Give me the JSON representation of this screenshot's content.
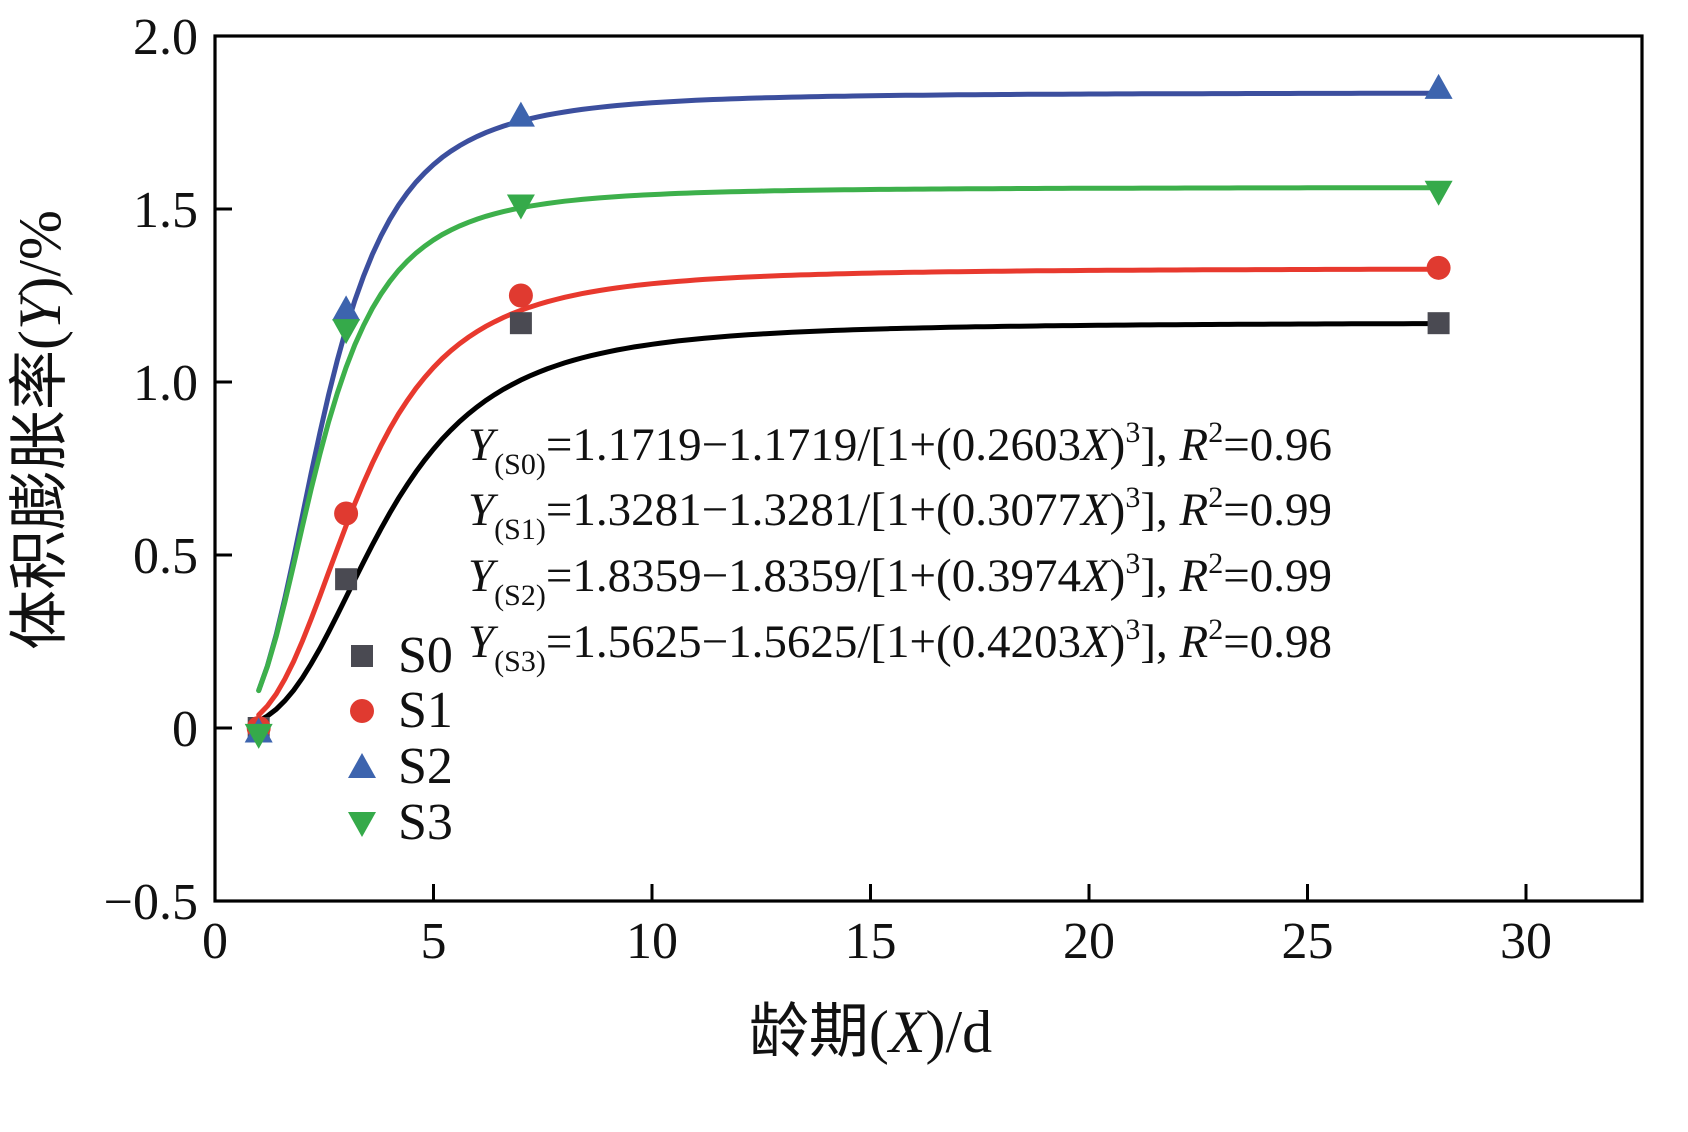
{
  "chart_data": {
    "type": "scatter",
    "title": "",
    "xlabel_tokens": [
      {
        "t": "龄期("
      },
      {
        "t": "X",
        "i": true
      },
      {
        "t": ")/d"
      }
    ],
    "ylabel_tokens": [
      {
        "t": "体积膨胀率("
      },
      {
        "t": "Y",
        "i": true
      },
      {
        "t": ")/%"
      }
    ],
    "xlim": [
      0,
      30
    ],
    "ylim": [
      -0.5,
      2.0
    ],
    "x_ticks": [
      {
        "v": 0,
        "label": "0"
      },
      {
        "v": 5,
        "label": "5"
      },
      {
        "v": 10,
        "label": "10"
      },
      {
        "v": 15,
        "label": "15"
      },
      {
        "v": 20,
        "label": "20"
      },
      {
        "v": 25,
        "label": "25"
      },
      {
        "v": 30,
        "label": "30"
      }
    ],
    "y_ticks": [
      {
        "v": 2.0,
        "label": "2.0"
      },
      {
        "v": 1.5,
        "label": "1.5"
      },
      {
        "v": 1.0,
        "label": "1.0"
      },
      {
        "v": 0.5,
        "label": "0.5"
      },
      {
        "v": 0.0,
        "label": "0"
      },
      {
        "v": -0.5,
        "label": "−0.5"
      }
    ],
    "grid": false,
    "frame_color": "#000000",
    "series": [
      {
        "name": "S0",
        "marker": "square",
        "marker_color": "#4a4a52",
        "line_color": "#000000",
        "fit": {
          "A": 1.1719,
          "k": 0.2603,
          "r2": 0.96
        },
        "points": [
          [
            1,
            0.0
          ],
          [
            3,
            0.43
          ],
          [
            7,
            1.17
          ],
          [
            28,
            1.17
          ]
        ]
      },
      {
        "name": "S1",
        "marker": "circle",
        "marker_color": "#e03a30",
        "line_color": "#e8392e",
        "fit": {
          "A": 1.3281,
          "k": 0.3077,
          "r2": 0.99
        },
        "points": [
          [
            1,
            0.0
          ],
          [
            3,
            0.62
          ],
          [
            7,
            1.25
          ],
          [
            28,
            1.33
          ]
        ]
      },
      {
        "name": "S2",
        "marker": "triangle-up",
        "marker_color": "#3d64ae",
        "line_color": "#3c4f9e",
        "fit": {
          "A": 1.8359,
          "k": 0.3974,
          "r2": 0.99
        },
        "points": [
          [
            1,
            -0.01
          ],
          [
            3,
            1.21
          ],
          [
            7,
            1.77
          ],
          [
            28,
            1.85
          ]
        ]
      },
      {
        "name": "S3",
        "marker": "triangle-down",
        "marker_color": "#35aa4a",
        "line_color": "#3db04b",
        "fit": {
          "A": 1.5625,
          "k": 0.4203,
          "r2": 0.98
        },
        "points": [
          [
            1,
            -0.02
          ],
          [
            3,
            1.15
          ],
          [
            7,
            1.51
          ],
          [
            28,
            1.55
          ]
        ]
      }
    ],
    "curve_x_range": [
      1,
      28
    ],
    "legend": {
      "entries": [
        "S0",
        "S1",
        "S2",
        "S3"
      ],
      "position": "inside-lower-left"
    },
    "equations": [
      [
        {
          "t": "Y",
          "i": true
        },
        {
          "t": "(S0)",
          "sub": true
        },
        {
          "t": "=1.1719−1.1719/[1+(0.2603"
        },
        {
          "t": "X",
          "i": true
        },
        {
          "t": ")"
        },
        {
          "t": "3",
          "sup": true
        },
        {
          "t": "], "
        },
        {
          "t": "R",
          "i": true
        },
        {
          "t": "2",
          "sup": true
        },
        {
          "t": "=0.96"
        }
      ],
      [
        {
          "t": "Y",
          "i": true
        },
        {
          "t": "(S1)",
          "sub": true
        },
        {
          "t": "=1.3281−1.3281/[1+(0.3077"
        },
        {
          "t": "X",
          "i": true
        },
        {
          "t": ")"
        },
        {
          "t": "3",
          "sup": true
        },
        {
          "t": "], "
        },
        {
          "t": "R",
          "i": true
        },
        {
          "t": "2",
          "sup": true
        },
        {
          "t": "=0.99"
        }
      ],
      [
        {
          "t": "Y",
          "i": true
        },
        {
          "t": "(S2)",
          "sub": true
        },
        {
          "t": "=1.8359−1.8359/[1+(0.3974"
        },
        {
          "t": "X",
          "i": true
        },
        {
          "t": ")"
        },
        {
          "t": "3",
          "sup": true
        },
        {
          "t": "], "
        },
        {
          "t": "R",
          "i": true
        },
        {
          "t": "2",
          "sup": true
        },
        {
          "t": "=0.99"
        }
      ],
      [
        {
          "t": "Y",
          "i": true
        },
        {
          "t": "(S3)",
          "sub": true
        },
        {
          "t": "=1.5625−1.5625/[1+(0.4203"
        },
        {
          "t": "X",
          "i": true
        },
        {
          "t": ")"
        },
        {
          "t": "3",
          "sup": true
        },
        {
          "t": "], "
        },
        {
          "t": "R",
          "i": true
        },
        {
          "t": "2",
          "sup": true
        },
        {
          "t": "=0.98"
        }
      ]
    ]
  }
}
